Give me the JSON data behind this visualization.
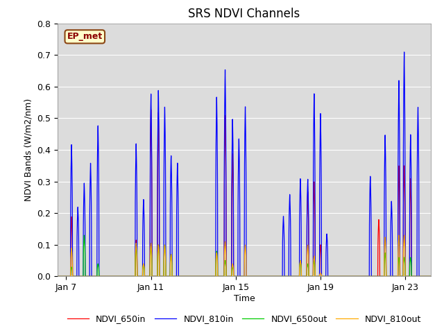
{
  "title": "SRS NDVI Channels",
  "xlabel": "Time",
  "ylabel": "NDVI Bands (W/m2/nm)",
  "annotation": "EP_met",
  "ylim": [
    0.0,
    0.8
  ],
  "legend": [
    "NDVI_650in",
    "NDVI_810in",
    "NDVI_650out",
    "NDVI_810out"
  ],
  "colors": [
    "#ff0000",
    "#0000ff",
    "#00cc00",
    "#ffaa00"
  ],
  "background_color": "#dcdcdc",
  "grid_color": "white",
  "title_fontsize": 12,
  "label_fontsize": 9,
  "tick_fontsize": 9,
  "xlim": [
    6.6,
    24.2
  ],
  "xtick_days": [
    7,
    11,
    15,
    19,
    23
  ],
  "xtick_labels": [
    "Jan 7",
    "Jan 11",
    "Jan 15",
    "Jan 19",
    "Jan 23"
  ],
  "spikes": [
    {
      "day": 7.25,
      "ndvi650in": 0.19,
      "ndvi810in": 0.42,
      "ndvi650out": 0.03,
      "ndvi810out": 0.09
    },
    {
      "day": 7.55,
      "ndvi650in": 0.0,
      "ndvi810in": 0.22,
      "ndvi650out": 0.0,
      "ndvi810out": 0.0
    },
    {
      "day": 7.85,
      "ndvi650in": 0.0,
      "ndvi810in": 0.295,
      "ndvi650out": 0.13,
      "ndvi810out": 0.0
    },
    {
      "day": 8.15,
      "ndvi650in": 0.0,
      "ndvi810in": 0.36,
      "ndvi650out": 0.0,
      "ndvi810out": 0.0
    },
    {
      "day": 8.5,
      "ndvi650in": 0.0,
      "ndvi810in": 0.48,
      "ndvi650out": 0.04,
      "ndvi810out": 0.0
    },
    {
      "day": 10.3,
      "ndvi650in": 0.115,
      "ndvi810in": 0.42,
      "ndvi650out": 0.095,
      "ndvi810out": 0.105
    },
    {
      "day": 10.65,
      "ndvi650in": 0.0,
      "ndvi810in": 0.245,
      "ndvi650out": 0.04,
      "ndvi810out": 0.04
    },
    {
      "day": 11.0,
      "ndvi650in": 0.53,
      "ndvi810in": 0.58,
      "ndvi650out": 0.095,
      "ndvi810out": 0.105
    },
    {
      "day": 11.35,
      "ndvi650in": 0.52,
      "ndvi810in": 0.59,
      "ndvi650out": 0.1,
      "ndvi810out": 0.1
    },
    {
      "day": 11.65,
      "ndvi650in": 0.0,
      "ndvi810in": 0.54,
      "ndvi650out": 0.1,
      "ndvi810out": 0.1
    },
    {
      "day": 11.95,
      "ndvi650in": 0.0,
      "ndvi810in": 0.385,
      "ndvi650out": 0.07,
      "ndvi810out": 0.07
    },
    {
      "day": 12.25,
      "ndvi650in": 0.0,
      "ndvi810in": 0.36,
      "ndvi650out": 0.0,
      "ndvi810out": 0.0
    },
    {
      "day": 14.1,
      "ndvi650in": 0.0,
      "ndvi810in": 0.57,
      "ndvi650out": 0.08,
      "ndvi810out": 0.075
    },
    {
      "day": 14.5,
      "ndvi650in": 0.51,
      "ndvi810in": 0.655,
      "ndvi650out": 0.05,
      "ndvi810out": 0.11
    },
    {
      "day": 14.85,
      "ndvi650in": 0.39,
      "ndvi810in": 0.5,
      "ndvi650out": 0.03,
      "ndvi810out": 0.04
    },
    {
      "day": 15.15,
      "ndvi650in": 0.0,
      "ndvi810in": 0.44,
      "ndvi650out": 0.0,
      "ndvi810out": 0.0
    },
    {
      "day": 15.45,
      "ndvi650in": 0.0,
      "ndvi810in": 0.54,
      "ndvi650out": 0.0,
      "ndvi810out": 0.1
    },
    {
      "day": 17.25,
      "ndvi650in": 0.0,
      "ndvi810in": 0.19,
      "ndvi650out": 0.0,
      "ndvi810out": 0.0
    },
    {
      "day": 17.55,
      "ndvi650in": 0.0,
      "ndvi810in": 0.26,
      "ndvi650out": 0.0,
      "ndvi810out": 0.0
    },
    {
      "day": 18.05,
      "ndvi650in": 0.0,
      "ndvi810in": 0.31,
      "ndvi650out": 0.05,
      "ndvi810out": 0.05
    },
    {
      "day": 18.4,
      "ndvi650in": 0.27,
      "ndvi810in": 0.31,
      "ndvi650out": 0.04,
      "ndvi810out": 0.1
    },
    {
      "day": 18.7,
      "ndvi650in": 0.3,
      "ndvi810in": 0.58,
      "ndvi650out": 0.05,
      "ndvi810out": 0.065
    },
    {
      "day": 19.0,
      "ndvi650in": 0.1,
      "ndvi810in": 0.515,
      "ndvi650out": 0.0,
      "ndvi810out": 0.01
    },
    {
      "day": 19.3,
      "ndvi650in": 0.0,
      "ndvi810in": 0.135,
      "ndvi650out": 0.0,
      "ndvi810out": 0.0
    },
    {
      "day": 21.35,
      "ndvi650in": 0.0,
      "ndvi810in": 0.32,
      "ndvi650out": 0.0,
      "ndvi810out": 0.0
    },
    {
      "day": 21.75,
      "ndvi650in": 0.18,
      "ndvi810in": 0.0,
      "ndvi650out": 0.0,
      "ndvi810out": 0.0
    },
    {
      "day": 22.05,
      "ndvi650in": 0.0,
      "ndvi810in": 0.45,
      "ndvi650out": 0.075,
      "ndvi810out": 0.125
    },
    {
      "day": 22.35,
      "ndvi650in": 0.0,
      "ndvi810in": 0.24,
      "ndvi650out": 0.0,
      "ndvi810out": 0.0
    },
    {
      "day": 22.7,
      "ndvi650in": 0.35,
      "ndvi810in": 0.62,
      "ndvi650out": 0.06,
      "ndvi810out": 0.13
    },
    {
      "day": 22.95,
      "ndvi650in": 0.35,
      "ndvi810in": 0.71,
      "ndvi650out": 0.06,
      "ndvi810out": 0.13
    },
    {
      "day": 23.25,
      "ndvi650in": 0.31,
      "ndvi810in": 0.45,
      "ndvi650out": 0.06,
      "ndvi810out": 0.0
    },
    {
      "day": 23.6,
      "ndvi650in": 0.0,
      "ndvi810in": 0.54,
      "ndvi650out": 0.0,
      "ndvi810out": 0.0
    }
  ]
}
